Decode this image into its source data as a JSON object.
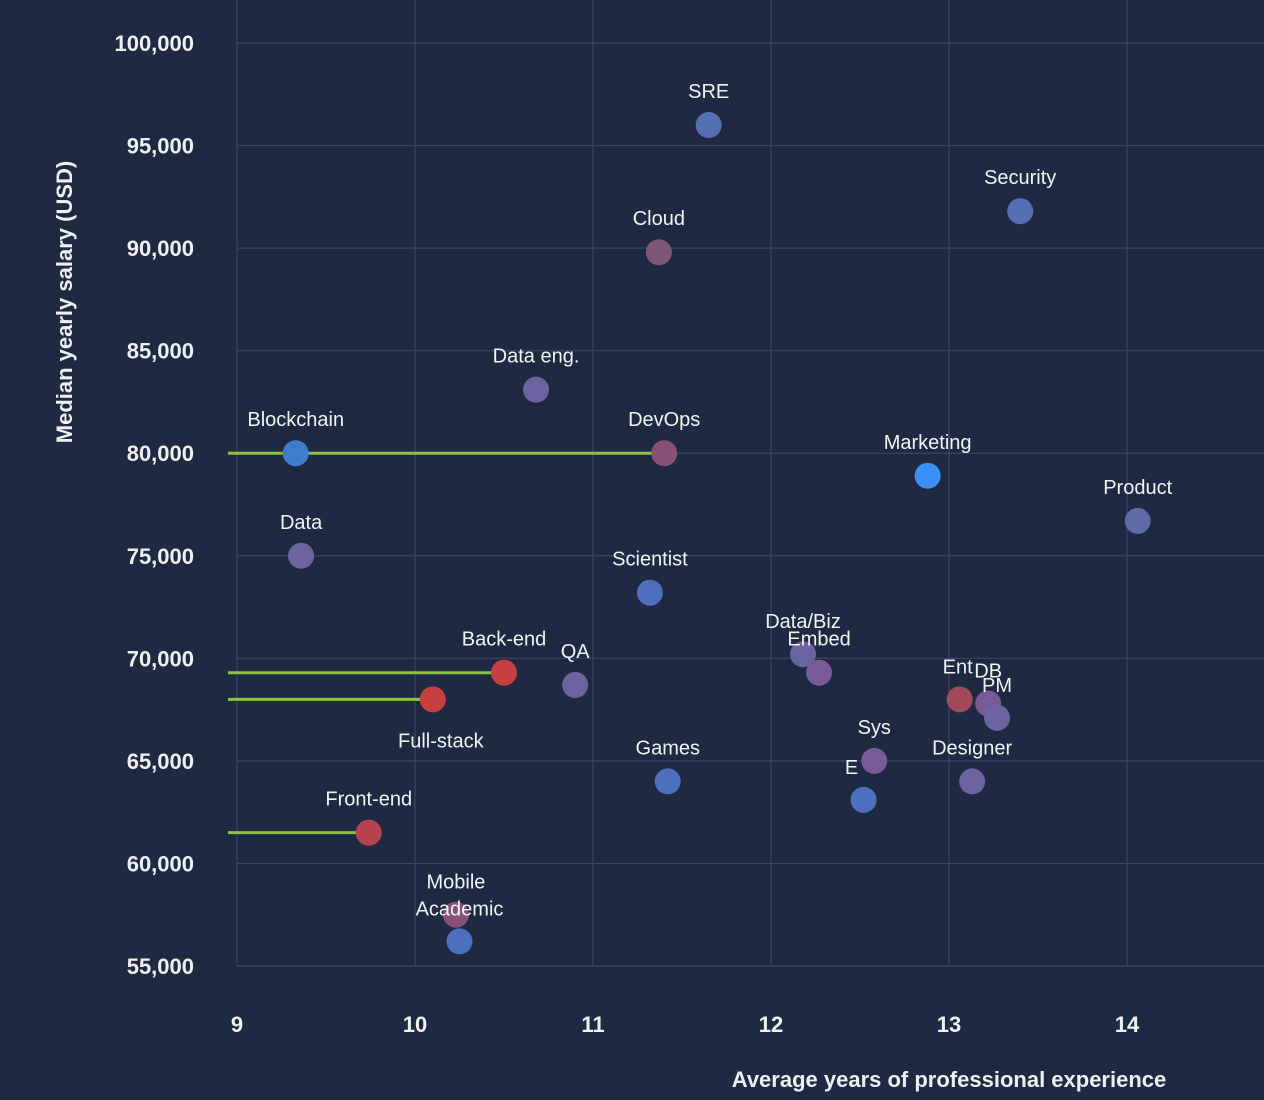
{
  "chart_data": {
    "type": "scatter",
    "xlabel": "Average years of professional experience",
    "ylabel": "Median yearly salary (USD)",
    "xlim": [
      9,
      14.75
    ],
    "ylim": [
      55000,
      101000
    ],
    "x_ticks": [
      9,
      10,
      11,
      12,
      13,
      14
    ],
    "y_ticks": [
      55000,
      60000,
      65000,
      70000,
      75000,
      80000,
      85000,
      90000,
      95000,
      100000
    ],
    "y_tick_labels": [
      "55,000",
      "60,000",
      "65,000",
      "70,000",
      "75,000",
      "80,000",
      "85,000",
      "90,000",
      "95,000",
      "100,000"
    ],
    "grid": true,
    "points": [
      {
        "label": "SRE",
        "x": 11.65,
        "y": 96000,
        "color": "#5470b3"
      },
      {
        "label": "Security",
        "x": 13.4,
        "y": 91800,
        "color": "#5470b3"
      },
      {
        "label": "Cloud",
        "x": 11.37,
        "y": 89800,
        "color": "#7d5678"
      },
      {
        "label": "Data eng.",
        "x": 10.68,
        "y": 83100,
        "color": "#6c64a0"
      },
      {
        "label": "Blockchain",
        "x": 9.33,
        "y": 80000,
        "color": "#3d7dcc"
      },
      {
        "label": "DevOps",
        "x": 11.4,
        "y": 80000,
        "color": "#8a5075"
      },
      {
        "label": "Marketing",
        "x": 12.88,
        "y": 78900,
        "color": "#3b90f5"
      },
      {
        "label": "Product",
        "x": 14.06,
        "y": 76700,
        "color": "#5f6ba8"
      },
      {
        "label": "Data",
        "x": 9.36,
        "y": 75000,
        "color": "#6c64a0"
      },
      {
        "label": "Scientist",
        "x": 11.32,
        "y": 73200,
        "color": "#4e6fbd"
      },
      {
        "label": "Data/Biz",
        "x": 12.18,
        "y": 70200,
        "color": "#6c64a0"
      },
      {
        "label": "Embed",
        "x": 12.27,
        "y": 69300,
        "color": "#7a5a96"
      },
      {
        "label": "Back-end",
        "x": 10.5,
        "y": 69300,
        "color": "#c7403f"
      },
      {
        "label": "QA",
        "x": 10.9,
        "y": 68700,
        "color": "#6c64a0"
      },
      {
        "label": "Ent",
        "x": 13.06,
        "y": 68000,
        "color": "#a14a5c"
      },
      {
        "label": "DB",
        "x": 13.22,
        "y": 67800,
        "color": "#7a5a96"
      },
      {
        "label": "PM",
        "x": 13.27,
        "y": 67100,
        "color": "#6c64a0"
      },
      {
        "label": "Full-stack",
        "x": 10.1,
        "y": 68000,
        "color": "#c7403f"
      },
      {
        "label": "Sys",
        "x": 12.58,
        "y": 65000,
        "color": "#7a5a96"
      },
      {
        "label": "E",
        "x": 12.52,
        "y": 63100,
        "color": "#4e6fbd"
      },
      {
        "label": "Games",
        "x": 11.42,
        "y": 64000,
        "color": "#4e6fbd"
      },
      {
        "label": "Designer",
        "x": 13.13,
        "y": 64000,
        "color": "#6c64a0"
      },
      {
        "label": "Front-end",
        "x": 9.74,
        "y": 61500,
        "color": "#b54450"
      },
      {
        "label": "Mobile",
        "x": 10.23,
        "y": 57500,
        "color": "#8a5075"
      },
      {
        "label": "Academic",
        "x": 10.25,
        "y": 56200,
        "color": "#4e6fbd"
      }
    ],
    "reference_lines": [
      {
        "from": "Blockchain",
        "y": 80000,
        "x_end": 11.4,
        "color": "#8bc34a"
      },
      {
        "from": "Back-end",
        "y": 69300,
        "x_end": 10.5,
        "color": "#8bc34a"
      },
      {
        "from": "Full-stack",
        "y": 68000,
        "x_end": 10.1,
        "color": "#8bc34a"
      },
      {
        "from": "Front-end",
        "y": 61500,
        "x_end": 9.74,
        "color": "#8bc34a"
      }
    ]
  }
}
